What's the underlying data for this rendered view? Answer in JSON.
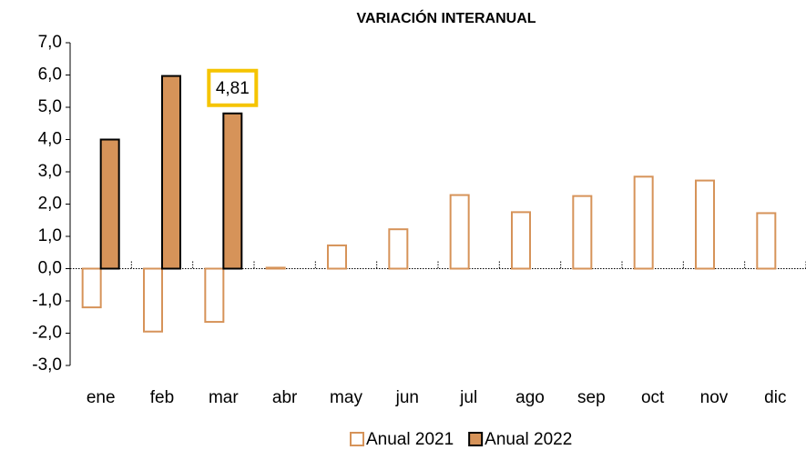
{
  "chart_data": {
    "type": "bar",
    "title": "VARIACIÓN INTERANUAL",
    "categories": [
      "ene",
      "feb",
      "mar",
      "abr",
      "may",
      "jun",
      "jul",
      "ago",
      "sep",
      "oct",
      "nov",
      "dic"
    ],
    "series": [
      {
        "name": "Anual 2021",
        "color": "#d69359",
        "filled": false,
        "values": [
          -1.2,
          -1.95,
          -1.65,
          0.03,
          0.72,
          1.22,
          2.28,
          1.75,
          2.25,
          2.85,
          2.73,
          1.72
        ]
      },
      {
        "name": "Anual 2022",
        "color": "#d69359",
        "edgecolor": "#000000",
        "filled": true,
        "values": [
          4.0,
          5.97,
          4.81,
          null,
          null,
          null,
          null,
          null,
          null,
          null,
          null,
          null
        ],
        "value_labels": [
          null,
          null,
          "4,81",
          null,
          null,
          null,
          null,
          null,
          null,
          null,
          null,
          null
        ],
        "label_box_color": "#f5c400"
      }
    ],
    "ylim": [
      -3,
      7
    ],
    "yticks": [
      {
        "value": -3,
        "label": "-3,0"
      },
      {
        "value": -2,
        "label": "-2,0"
      },
      {
        "value": -1,
        "label": "-1,0"
      },
      {
        "value": 0,
        "label": "0,0"
      },
      {
        "value": 1,
        "label": "1,0"
      },
      {
        "value": 2,
        "label": "2,0"
      },
      {
        "value": 3,
        "label": "3,0"
      },
      {
        "value": 4,
        "label": "4,0"
      },
      {
        "value": 5,
        "label": "5,0"
      },
      {
        "value": 6,
        "label": "6,0"
      },
      {
        "value": 7,
        "label": "7,0"
      }
    ],
    "legend": "bottom"
  }
}
